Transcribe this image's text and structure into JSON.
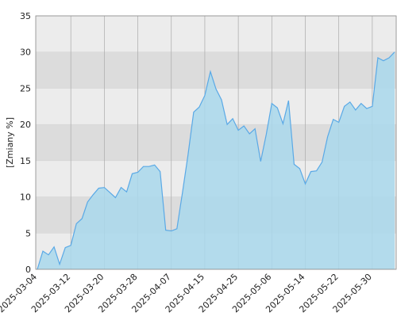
{
  "chart_data": {
    "type": "area",
    "y_label": "[Zmiany %]",
    "categories": [
      "2025-03-04",
      null,
      null,
      null,
      null,
      null,
      "2025-03-12",
      null,
      null,
      null,
      null,
      null,
      "2025-03-20",
      null,
      null,
      null,
      null,
      null,
      "2025-03-28",
      null,
      null,
      null,
      null,
      null,
      "2025-04-07",
      null,
      null,
      null,
      null,
      null,
      "2025-04-15",
      null,
      null,
      null,
      null,
      null,
      "2025-04-25",
      null,
      null,
      null,
      null,
      null,
      "2025-05-06",
      null,
      null,
      null,
      null,
      null,
      "2025-05-14",
      null,
      null,
      null,
      null,
      null,
      "2025-05-22",
      null,
      null,
      null,
      null,
      null,
      "2025-05-30",
      null,
      null,
      null,
      null
    ],
    "values": [
      0,
      2.5,
      2.0,
      3.1,
      0.7,
      3.0,
      3.3,
      6.3,
      7.0,
      9.3,
      10.3,
      11.2,
      11.3,
      10.6,
      9.9,
      11.3,
      10.7,
      13.2,
      13.4,
      14.2,
      14.2,
      14.4,
      13.5,
      5.4,
      5.3,
      5.6,
      10.6,
      15.8,
      21.7,
      22.4,
      24.0,
      27.3,
      24.9,
      23.4,
      20.0,
      20.8,
      19.2,
      19.8,
      18.7,
      19.4,
      14.9,
      18.6,
      22.9,
      22.3,
      20.1,
      23.3,
      14.5,
      13.9,
      11.8,
      13.5,
      13.6,
      14.8,
      18.3,
      20.7,
      20.3,
      22.5,
      23.1,
      22.0,
      22.9,
      22.2,
      22.5,
      29.2,
      28.8,
      29.2,
      30.0
    ],
    "color": "#5aa9e6",
    "fill": "#a9d8ec",
    "ylim": [
      0,
      35
    ],
    "yticks": [
      0,
      5,
      10,
      15,
      20,
      25,
      30,
      35
    ],
    "grid": true
  }
}
